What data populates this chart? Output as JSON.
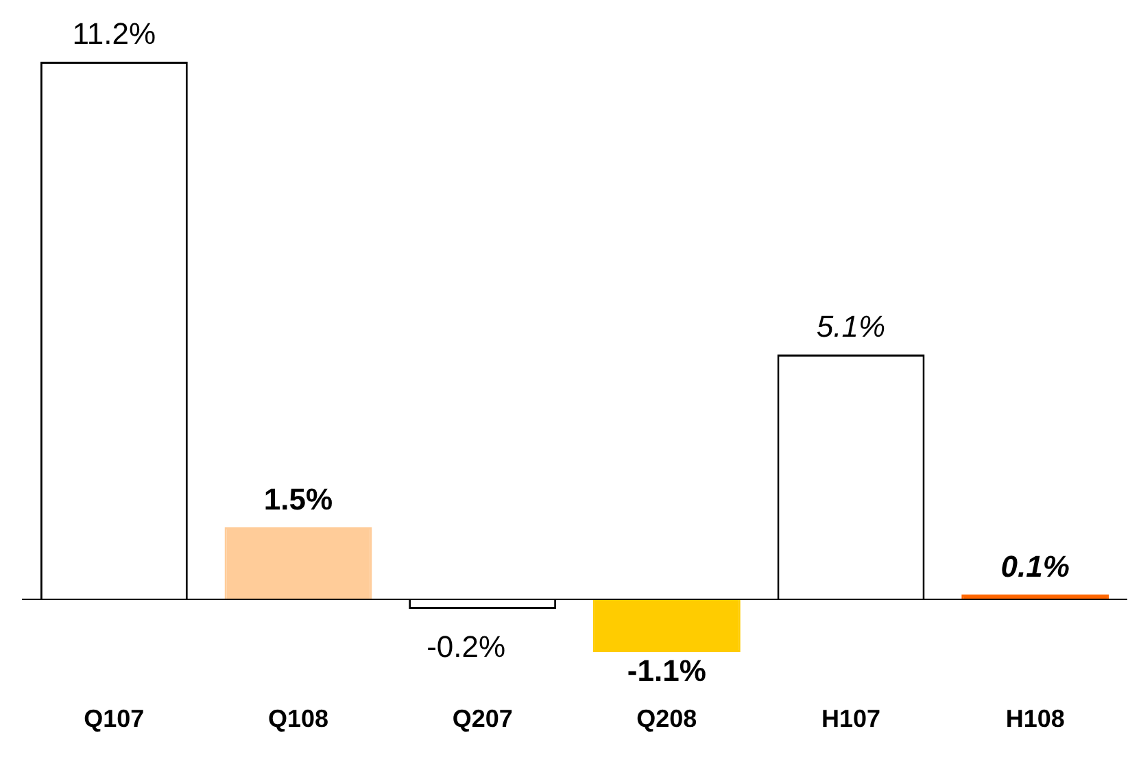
{
  "chart_data": {
    "type": "bar",
    "categories": [
      "Q107",
      "Q108",
      "Q207",
      "Q208",
      "H107",
      "H108"
    ],
    "values": [
      11.2,
      1.5,
      -0.2,
      -1.1,
      5.1,
      0.1
    ],
    "colors": [
      "#ffffff",
      "#ffcc99",
      "#ffffff",
      "#ffcc00",
      "#ffffff",
      "#ff6600"
    ],
    "value_labels": [
      "11.2%",
      "1.5%",
      "-0.2%",
      "-1.1%",
      "5.1%",
      "0.1%"
    ],
    "grid": false,
    "legend": false
  }
}
